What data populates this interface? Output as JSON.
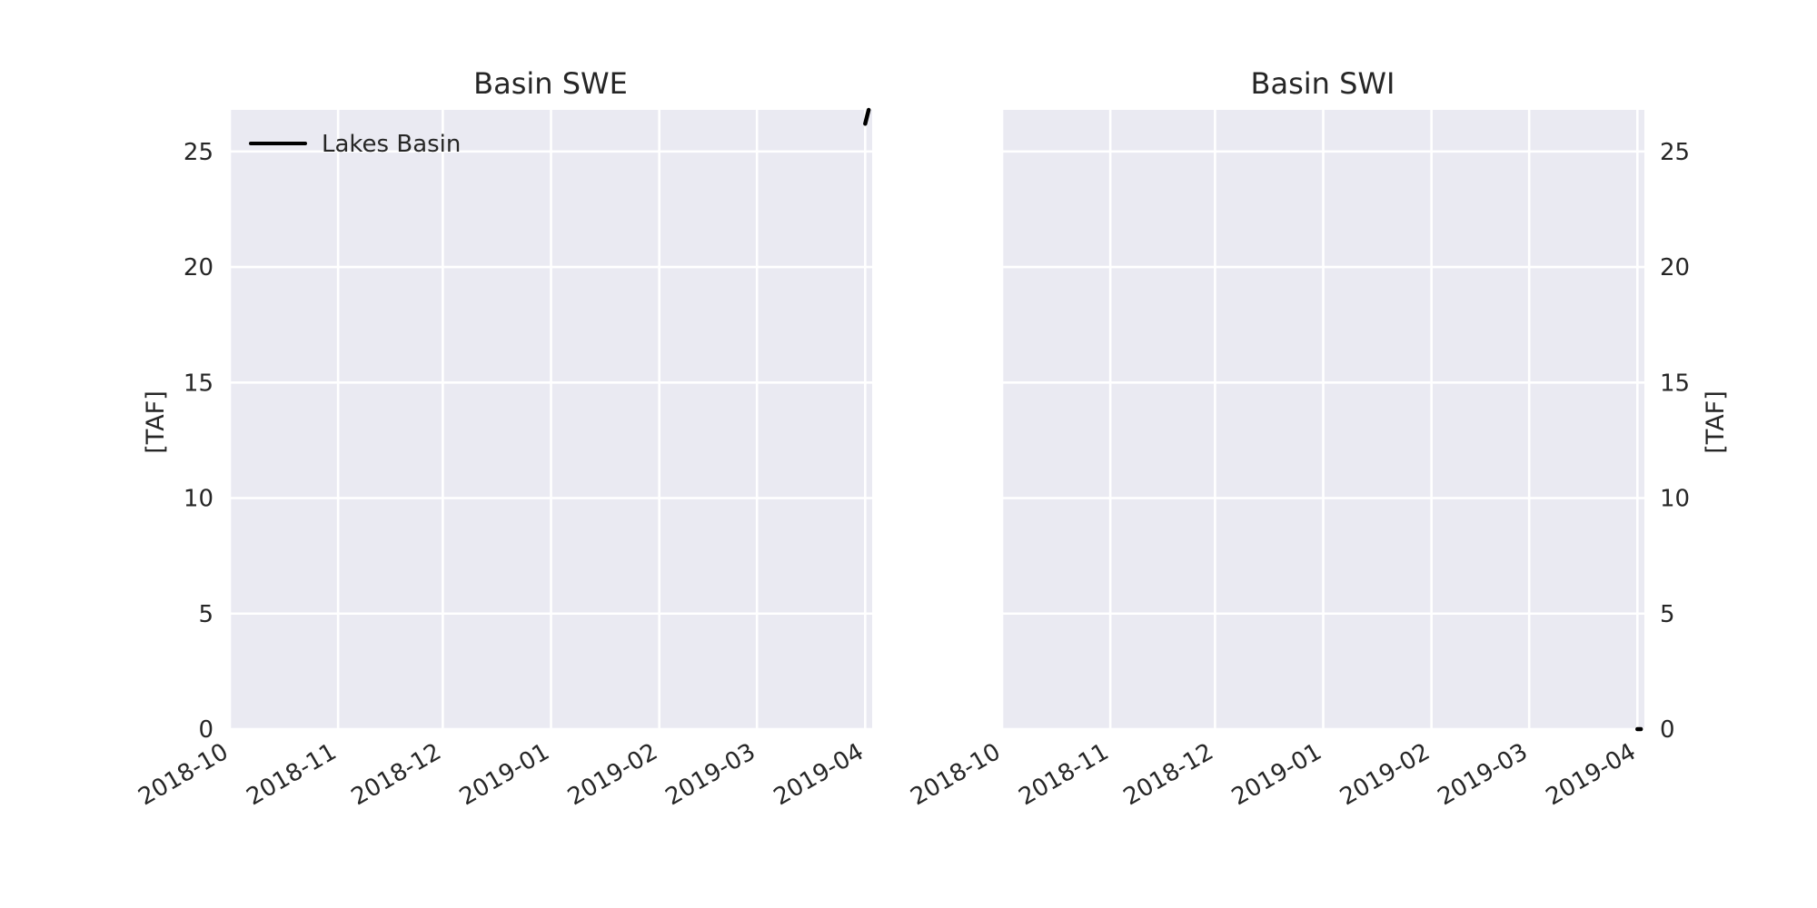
{
  "chart_data": [
    {
      "type": "line",
      "title": "Basin SWE",
      "ylabel": "[TAF]",
      "xlabel": "",
      "ylim": [
        0,
        26.8
      ],
      "xlim": [
        "2018-10-01",
        "2019-04-03"
      ],
      "xticks": [
        "2018-10",
        "2018-11",
        "2018-12",
        "2019-01",
        "2019-02",
        "2019-03",
        "2019-04"
      ],
      "yticks": [
        "0",
        "5",
        "10",
        "15",
        "20",
        "25"
      ],
      "grid": true,
      "legend_position": "top-left",
      "y_axis_side": "left",
      "series": [
        {
          "name": "Lakes Basin",
          "color": "#000000",
          "x": [
            "2019-04-01",
            "2019-04-02"
          ],
          "y": [
            26.2,
            26.8
          ]
        }
      ]
    },
    {
      "type": "line",
      "title": "Basin SWI",
      "ylabel": "[TAF]",
      "xlabel": "",
      "ylim": [
        0,
        26.8
      ],
      "xlim": [
        "2018-10-01",
        "2019-04-03"
      ],
      "xticks": [
        "2018-10",
        "2018-11",
        "2018-12",
        "2019-01",
        "2019-02",
        "2019-03",
        "2019-04"
      ],
      "yticks": [
        "0",
        "5",
        "10",
        "15",
        "20",
        "25"
      ],
      "grid": true,
      "y_axis_side": "right",
      "series": [
        {
          "color": "#000000",
          "x": [
            "2019-04-01",
            "2019-04-02"
          ],
          "y": [
            0,
            0
          ]
        }
      ]
    }
  ]
}
